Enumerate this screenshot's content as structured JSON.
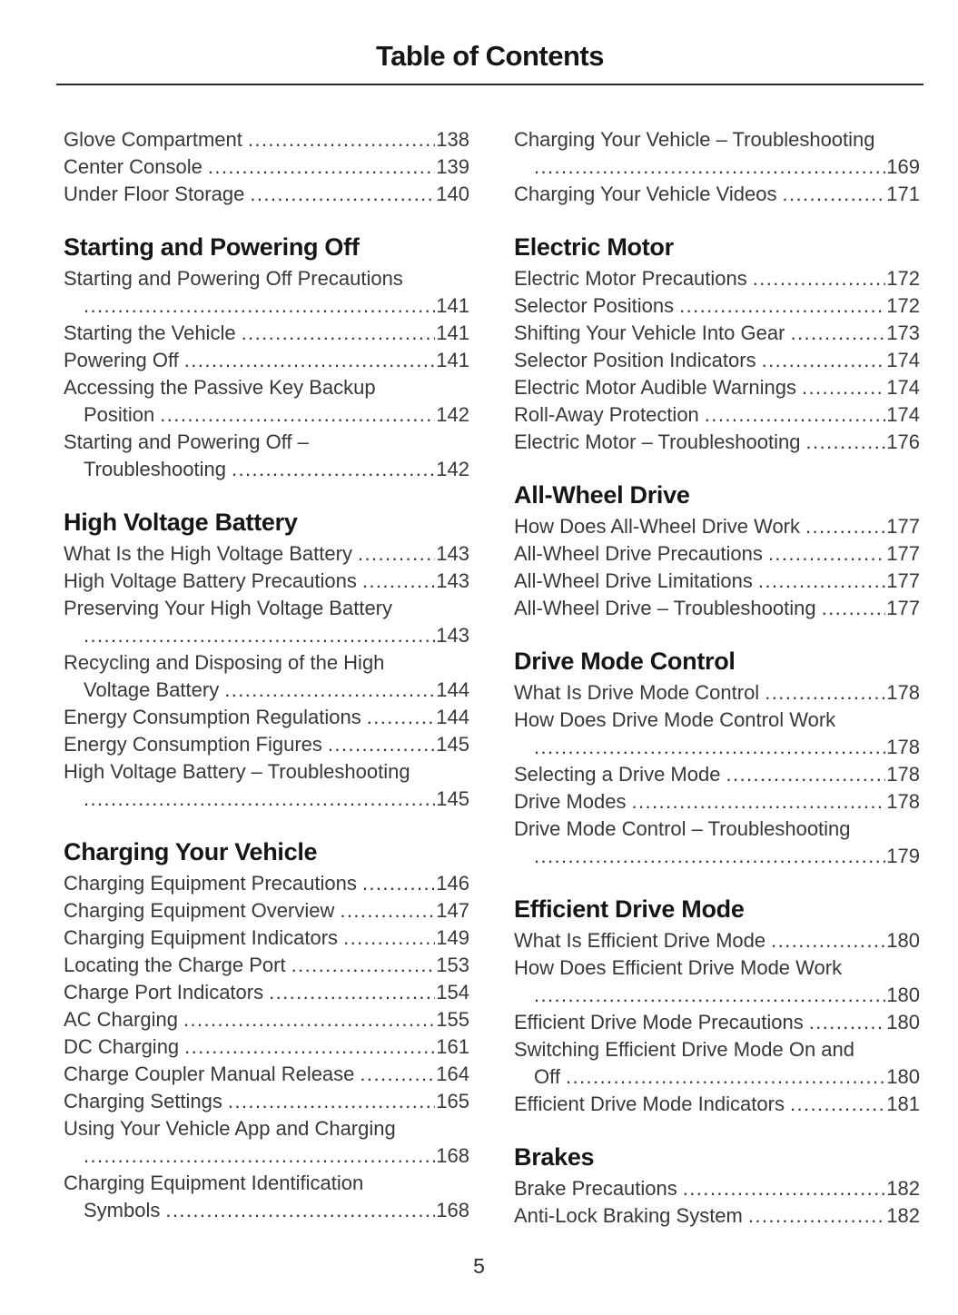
{
  "header": {
    "title": "Table of Contents"
  },
  "footer": {
    "page_number": "5"
  },
  "colors": {
    "background": "#ffffff",
    "heading_text": "#161616",
    "body_text": "#383838",
    "rule": "#2b2b2b"
  },
  "toc": {
    "columns": [
      {
        "sections": [
          {
            "heading": null,
            "entries": [
              {
                "title": "Glove Compartment",
                "page": "138"
              },
              {
                "title": "Center Console",
                "page": "139"
              },
              {
                "title": "Under Floor Storage",
                "page": "140"
              }
            ]
          },
          {
            "heading": "Starting and Powering Off",
            "entries": [
              {
                "title": "Starting and Powering Off Precautions",
                "wrap": "",
                "page": "141"
              },
              {
                "title": "Starting the Vehicle",
                "page": "141"
              },
              {
                "title": "Powering Off",
                "page": "141"
              },
              {
                "title": "Accessing the Passive Key Backup",
                "wrap": "Position",
                "page": "142"
              },
              {
                "title": "Starting and Powering Off –",
                "wrap": "Troubleshooting",
                "page": "142"
              }
            ]
          },
          {
            "heading": "High Voltage Battery",
            "entries": [
              {
                "title": "What Is the High Voltage Battery",
                "page": "143"
              },
              {
                "title": "High Voltage Battery Precautions",
                "page": "143"
              },
              {
                "title": "Preserving Your High Voltage Battery",
                "wrap": "",
                "page": "143"
              },
              {
                "title": "Recycling and Disposing of the High",
                "wrap": "Voltage Battery",
                "page": "144"
              },
              {
                "title": "Energy Consumption Regulations",
                "page": "144"
              },
              {
                "title": "Energy Consumption Figures",
                "page": "145"
              },
              {
                "title": "High Voltage Battery – Troubleshooting",
                "wrap": "",
                "page": "145"
              }
            ]
          },
          {
            "heading": "Charging Your Vehicle",
            "entries": [
              {
                "title": "Charging Equipment Precautions",
                "page": "146"
              },
              {
                "title": "Charging Equipment Overview",
                "page": "147"
              },
              {
                "title": "Charging Equipment Indicators",
                "page": "149"
              },
              {
                "title": "Locating the Charge Port",
                "page": "153"
              },
              {
                "title": "Charge Port Indicators",
                "page": "154"
              },
              {
                "title": "AC Charging",
                "page": "155"
              },
              {
                "title": "DC Charging",
                "page": "161"
              },
              {
                "title": "Charge Coupler Manual Release",
                "page": "164"
              },
              {
                "title": "Charging Settings",
                "page": "165"
              },
              {
                "title": "Using Your Vehicle App and Charging",
                "wrap": "",
                "page": "168"
              },
              {
                "title": "Charging Equipment Identification",
                "wrap": "Symbols",
                "page": "168"
              }
            ]
          }
        ]
      },
      {
        "sections": [
          {
            "heading": null,
            "entries": [
              {
                "title": "Charging Your Vehicle – Troubleshooting",
                "wrap": "",
                "page": "169"
              },
              {
                "title": "Charging Your Vehicle Videos",
                "page": "171"
              }
            ]
          },
          {
            "heading": "Electric Motor",
            "entries": [
              {
                "title": "Electric Motor Precautions",
                "page": "172"
              },
              {
                "title": "Selector Positions",
                "page": "172"
              },
              {
                "title": "Shifting Your Vehicle Into Gear",
                "page": "173"
              },
              {
                "title": "Selector Position Indicators",
                "page": "174"
              },
              {
                "title": "Electric Motor Audible Warnings",
                "page": "174"
              },
              {
                "title": "Roll-Away Protection",
                "page": "174"
              },
              {
                "title": "Electric Motor – Troubleshooting",
                "page": "176"
              }
            ]
          },
          {
            "heading": "All-Wheel Drive",
            "entries": [
              {
                "title": "How Does All-Wheel Drive Work",
                "page": "177"
              },
              {
                "title": "All-Wheel Drive Precautions",
                "page": "177"
              },
              {
                "title": "All-Wheel Drive Limitations",
                "page": "177"
              },
              {
                "title": "All-Wheel Drive – Troubleshooting",
                "page": "177"
              }
            ]
          },
          {
            "heading": "Drive Mode Control",
            "entries": [
              {
                "title": "What Is Drive Mode Control",
                "page": "178"
              },
              {
                "title": "How Does Drive Mode Control Work",
                "wrap": "",
                "page": "178"
              },
              {
                "title": "Selecting a Drive Mode",
                "page": "178"
              },
              {
                "title": "Drive Modes",
                "page": "178"
              },
              {
                "title": "Drive Mode Control – Troubleshooting",
                "wrap": "",
                "page": "179"
              }
            ]
          },
          {
            "heading": "Efficient Drive Mode",
            "entries": [
              {
                "title": "What Is Efficient Drive Mode",
                "page": "180"
              },
              {
                "title": "How Does Efficient Drive Mode Work",
                "wrap": "",
                "page": "180"
              },
              {
                "title": "Efficient Drive Mode Precautions",
                "page": "180"
              },
              {
                "title": "Switching Efficient Drive Mode On and",
                "wrap": "Off",
                "page": "180"
              },
              {
                "title": "Efficient Drive Mode Indicators",
                "page": "181"
              }
            ]
          },
          {
            "heading": "Brakes",
            "entries": [
              {
                "title": "Brake Precautions",
                "page": "182"
              },
              {
                "title": "Anti-Lock Braking System",
                "page": "182"
              }
            ]
          }
        ]
      }
    ]
  }
}
